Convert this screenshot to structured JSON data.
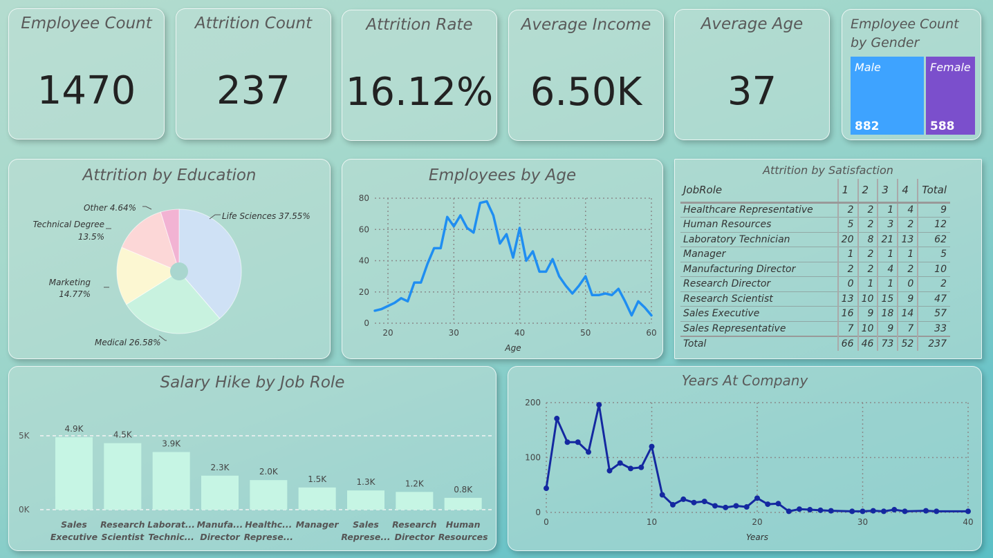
{
  "kpis": [
    {
      "title": "Employee Count",
      "value": "1470"
    },
    {
      "title": "Attrition Count",
      "value": "237"
    },
    {
      "title": "Attrition Rate",
      "value": "16.12%"
    },
    {
      "title": "Average Income",
      "value": "6.50K"
    },
    {
      "title": "Average Age",
      "value": "37"
    }
  ],
  "gender": {
    "title": "Employee Count by Gender",
    "tiles": [
      {
        "label": "Male",
        "value": "882",
        "color": "#3ea3ff"
      },
      {
        "label": "Female",
        "value": "588",
        "color": "#7b4fcc"
      }
    ]
  },
  "satisfaction": {
    "title": "Attrition by Satisfaction",
    "headers": [
      "JobRole",
      "1",
      "2",
      "3",
      "4",
      "Total"
    ],
    "rows": [
      [
        "Healthcare Representative",
        "2",
        "2",
        "1",
        "4",
        "9"
      ],
      [
        "Human Resources",
        "5",
        "2",
        "3",
        "2",
        "12"
      ],
      [
        "Laboratory Technician",
        "20",
        "8",
        "21",
        "13",
        "62"
      ],
      [
        "Manager",
        "1",
        "2",
        "1",
        "1",
        "5"
      ],
      [
        "Manufacturing Director",
        "2",
        "2",
        "4",
        "2",
        "10"
      ],
      [
        "Research Director",
        "0",
        "1",
        "1",
        "0",
        "2"
      ],
      [
        "Research Scientist",
        "13",
        "10",
        "15",
        "9",
        "47"
      ],
      [
        "Sales Executive",
        "16",
        "9",
        "18",
        "14",
        "57"
      ],
      [
        "Sales Representative",
        "7",
        "10",
        "9",
        "7",
        "33"
      ]
    ],
    "total": [
      "Total",
      "66",
      "46",
      "73",
      "52",
      "237"
    ]
  },
  "chart_data": [
    {
      "type": "pie",
      "title": "Attrition by Education",
      "labels": [
        "Life Sciences",
        "Medical",
        "Marketing",
        "Technical Degree",
        "Other"
      ],
      "values": [
        37.55,
        26.58,
        14.77,
        13.5,
        4.64
      ],
      "display_labels": [
        "Life Sciences 37.55%",
        "Medical 26.58%",
        "Marketing",
        "14.77%",
        "Technical Degree",
        "13.5%",
        "Other 4.64%"
      ],
      "colors": [
        "#cfe1f5",
        "#c8f2df",
        "#fcf7d2",
        "#fcd7d7",
        "#f2b3d3",
        "#dba4f0"
      ]
    },
    {
      "type": "line",
      "title": "Employees by Age",
      "xlabel": "Age",
      "ylabel": "",
      "xlim": [
        18,
        60
      ],
      "ylim": [
        0,
        80
      ],
      "xticks": [
        20,
        30,
        40,
        50,
        60
      ],
      "yticks": [
        0,
        20,
        40,
        60,
        80
      ],
      "x": [
        18,
        19,
        20,
        21,
        22,
        23,
        24,
        25,
        26,
        27,
        28,
        29,
        30,
        31,
        32,
        33,
        34,
        35,
        36,
        37,
        38,
        39,
        40,
        41,
        42,
        43,
        44,
        45,
        46,
        47,
        48,
        49,
        50,
        51,
        52,
        53,
        54,
        55,
        56,
        57,
        58,
        59,
        60
      ],
      "values": [
        8,
        9,
        11,
        13,
        16,
        14,
        26,
        26,
        38,
        48,
        48,
        68,
        62,
        69,
        61,
        58,
        77,
        78,
        69,
        51,
        57,
        42,
        61,
        40,
        46,
        33,
        33,
        41,
        30,
        24,
        19,
        24,
        30,
        18,
        18,
        19,
        18,
        22,
        14,
        5,
        14,
        10,
        5
      ],
      "color": "#1f8ef1"
    },
    {
      "type": "bar",
      "title": "Salary Hike by Job Role",
      "xlabel": "",
      "ylabel": "",
      "ylim": [
        0,
        5000
      ],
      "yticks": [
        "0K",
        "5K"
      ],
      "categories": [
        "Sales Executive",
        "Research Scientist",
        "Laboratory Technician",
        "Manufacturing Director",
        "Healthcare Representative",
        "Manager",
        "Sales Representative",
        "Research Director",
        "Human Resources"
      ],
      "category_labels": [
        [
          "Sales",
          "Executive"
        ],
        [
          "Research",
          "Scientist"
        ],
        [
          "Laborat...",
          "Technic..."
        ],
        [
          "Manufa...",
          "Director"
        ],
        [
          "Healthc...",
          "Represe..."
        ],
        [
          "Manager",
          ""
        ],
        [
          "Sales",
          "Represe..."
        ],
        [
          "Research",
          "Director"
        ],
        [
          "Human",
          "Resources"
        ]
      ],
      "values": [
        4900,
        4500,
        3900,
        2300,
        2000,
        1500,
        1300,
        1200,
        800
      ],
      "data_labels": [
        "4.9K",
        "4.5K",
        "3.9K",
        "2.3K",
        "2.0K",
        "1.5K",
        "1.3K",
        "1.2K",
        "0.8K"
      ],
      "color": "#c6f5e4"
    },
    {
      "type": "line",
      "title": "Years At Company",
      "xlabel": "Years",
      "ylabel": "",
      "xlim": [
        0,
        40
      ],
      "ylim": [
        0,
        200
      ],
      "xticks": [
        0,
        10,
        20,
        30,
        40
      ],
      "yticks": [
        0,
        100,
        200
      ],
      "x": [
        0,
        1,
        2,
        3,
        4,
        5,
        6,
        7,
        8,
        9,
        10,
        11,
        12,
        13,
        14,
        15,
        16,
        17,
        18,
        19,
        20,
        21,
        22,
        23,
        24,
        25,
        26,
        27,
        29,
        30,
        31,
        32,
        33,
        34,
        36,
        37,
        40
      ],
      "values": [
        44,
        171,
        128,
        128,
        110,
        196,
        76,
        90,
        80,
        82,
        120,
        32,
        14,
        24,
        18,
        20,
        12,
        9,
        12,
        10,
        26,
        15,
        16,
        2,
        6,
        5,
        4,
        3,
        2,
        2,
        3,
        2,
        5,
        2,
        3,
        2,
        2
      ],
      "color": "#1428a0"
    }
  ]
}
